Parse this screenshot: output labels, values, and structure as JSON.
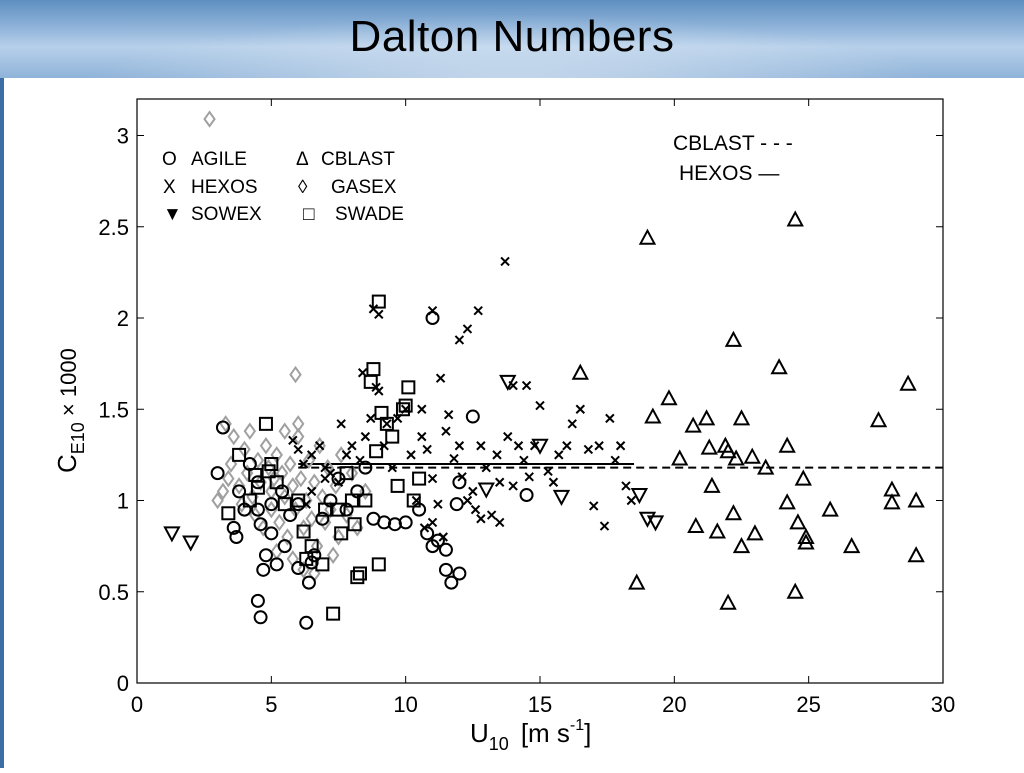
{
  "slide": {
    "title": "Dalton Numbers"
  },
  "colors": {
    "black": "#000000",
    "gasex": "#a0a0a0",
    "title_bar": "#8fb3d9"
  },
  "chart_data": {
    "type": "scatter",
    "xlabel": {
      "base": "U",
      "sub": "10",
      "units": "[m s",
      "sup": "-1",
      "close": "]"
    },
    "ylabel": {
      "base": "C",
      "sub": "E10",
      "suffix": " × 1000"
    },
    "xlim": [
      0,
      30
    ],
    "ylim": [
      0,
      3.2
    ],
    "x_ticks": [
      0,
      5,
      10,
      15,
      20,
      25,
      30
    ],
    "y_ticks": [
      0,
      0.5,
      1,
      1.5,
      2,
      2.5,
      3
    ],
    "legend": {
      "placement": "top-left",
      "rows": [
        [
          {
            "symbol": "O",
            "label": "AGILE"
          },
          {
            "symbol": "Δ",
            "label": "CBLAST"
          }
        ],
        [
          {
            "symbol": "X",
            "label": "HEXOS"
          },
          {
            "symbol": "◊",
            "label": "GASEX"
          }
        ],
        [
          {
            "symbol": "▼",
            "label": "SOWEX"
          },
          {
            "symbol": "□",
            "label": "SWADE"
          }
        ]
      ]
    },
    "fit_legend": {
      "placement": "top-right",
      "items": [
        {
          "label": "CBLAST - - -"
        },
        {
          "label": "HEXOS  —"
        }
      ]
    },
    "fit_lines": [
      {
        "name": "CBLAST",
        "style": "dashed",
        "x": [
          6,
          30
        ],
        "y": [
          1.18,
          1.18
        ]
      },
      {
        "name": "HEXOS",
        "style": "solid",
        "x": [
          6,
          18.5
        ],
        "y": [
          1.2,
          1.2
        ]
      }
    ],
    "series": [
      {
        "name": "AGILE",
        "marker": "circle",
        "points": [
          [
            3.2,
            1.4
          ],
          [
            3.0,
            1.15
          ],
          [
            3.6,
            0.85
          ],
          [
            3.7,
            0.8
          ],
          [
            3.8,
            1.05
          ],
          [
            4.0,
            0.95
          ],
          [
            4.2,
            1.2
          ],
          [
            4.5,
            1.1
          ],
          [
            4.5,
            0.95
          ],
          [
            4.6,
            0.87
          ],
          [
            4.7,
            0.62
          ],
          [
            4.8,
            0.7
          ],
          [
            5.0,
            0.82
          ],
          [
            5.2,
            0.65
          ],
          [
            5.4,
            1.05
          ],
          [
            5.5,
            0.75
          ],
          [
            4.5,
            0.45
          ],
          [
            4.6,
            0.36
          ],
          [
            5.7,
            0.92
          ],
          [
            6.0,
            0.63
          ],
          [
            6.3,
            0.33
          ],
          [
            6.4,
            0.55
          ],
          [
            6.6,
            0.7
          ],
          [
            6.9,
            0.9
          ],
          [
            7.2,
            1.0
          ],
          [
            7.5,
            1.12
          ],
          [
            7.8,
            0.95
          ],
          [
            8.2,
            1.05
          ],
          [
            8.5,
            1.18
          ],
          [
            8.8,
            0.9
          ],
          [
            9.2,
            0.88
          ],
          [
            9.6,
            0.87
          ],
          [
            10.0,
            0.88
          ],
          [
            10.5,
            0.95
          ],
          [
            10.8,
            0.82
          ],
          [
            11.2,
            0.78
          ],
          [
            11.5,
            0.62
          ],
          [
            11.7,
            0.55
          ],
          [
            12.0,
            0.6
          ],
          [
            11.0,
            2.0
          ],
          [
            12.5,
            1.46
          ],
          [
            14.5,
            1.03
          ],
          [
            12.0,
            1.1
          ],
          [
            11.9,
            0.98
          ],
          [
            11.5,
            0.73
          ],
          [
            11.0,
            0.75
          ],
          [
            6.0,
            0.98
          ],
          [
            6.5,
            0.66
          ],
          [
            5.0,
            0.98
          ]
        ]
      },
      {
        "name": "CBLAST",
        "marker": "triangle-up",
        "points": [
          [
            16.5,
            1.7
          ],
          [
            18.6,
            0.55
          ],
          [
            19.0,
            2.44
          ],
          [
            19.2,
            1.46
          ],
          [
            19.8,
            1.56
          ],
          [
            20.2,
            1.23
          ],
          [
            20.7,
            1.41
          ],
          [
            20.8,
            0.86
          ],
          [
            21.2,
            1.45
          ],
          [
            21.3,
            1.29
          ],
          [
            21.4,
            1.08
          ],
          [
            21.6,
            0.83
          ],
          [
            21.9,
            1.3
          ],
          [
            22.0,
            1.27
          ],
          [
            22.2,
            1.88
          ],
          [
            22.0,
            0.44
          ],
          [
            22.2,
            0.93
          ],
          [
            22.3,
            1.23
          ],
          [
            22.5,
            1.45
          ],
          [
            22.5,
            0.75
          ],
          [
            22.9,
            1.24
          ],
          [
            23.0,
            0.82
          ],
          [
            23.4,
            1.18
          ],
          [
            23.9,
            1.73
          ],
          [
            24.2,
            1.3
          ],
          [
            24.2,
            0.99
          ],
          [
            24.5,
            2.54
          ],
          [
            24.5,
            0.5
          ],
          [
            24.6,
            0.88
          ],
          [
            24.8,
            1.12
          ],
          [
            24.9,
            0.8
          ],
          [
            24.9,
            0.77
          ],
          [
            25.8,
            0.95
          ],
          [
            26.6,
            0.75
          ],
          [
            27.6,
            1.44
          ],
          [
            28.1,
            1.06
          ],
          [
            28.1,
            0.99
          ],
          [
            28.7,
            1.64
          ],
          [
            29.0,
            1.0
          ],
          [
            29.0,
            0.7
          ]
        ]
      },
      {
        "name": "HEXOS",
        "marker": "x",
        "points": [
          [
            5.8,
            1.33
          ],
          [
            6.0,
            1.28
          ],
          [
            6.2,
            1.2
          ],
          [
            6.5,
            1.25
          ],
          [
            6.8,
            1.3
          ],
          [
            7.0,
            1.18
          ],
          [
            7.2,
            1.15
          ],
          [
            7.5,
            1.1
          ],
          [
            7.8,
            1.25
          ],
          [
            8.0,
            1.3
          ],
          [
            8.3,
            1.22
          ],
          [
            8.5,
            1.35
          ],
          [
            8.7,
            1.45
          ],
          [
            8.8,
            2.05
          ],
          [
            9.0,
            2.02
          ],
          [
            9.0,
            1.6
          ],
          [
            9.2,
            1.3
          ],
          [
            9.5,
            1.18
          ],
          [
            9.7,
            1.45
          ],
          [
            10.0,
            1.5
          ],
          [
            10.2,
            1.25
          ],
          [
            10.4,
            1.0
          ],
          [
            10.6,
            1.35
          ],
          [
            10.8,
            1.28
          ],
          [
            11.0,
            2.04
          ],
          [
            11.0,
            1.12
          ],
          [
            11.2,
            0.98
          ],
          [
            11.5,
            1.38
          ],
          [
            11.6,
            1.47
          ],
          [
            11.8,
            1.23
          ],
          [
            12.0,
            1.3
          ],
          [
            12.1,
            1.13
          ],
          [
            12.3,
            1.0
          ],
          [
            12.5,
            1.05
          ],
          [
            12.6,
            0.95
          ],
          [
            12.8,
            1.3
          ],
          [
            13.0,
            1.18
          ],
          [
            13.2,
            0.92
          ],
          [
            13.4,
            1.25
          ],
          [
            13.5,
            1.1
          ],
          [
            13.7,
            2.31
          ],
          [
            13.8,
            1.35
          ],
          [
            14.0,
            1.08
          ],
          [
            14.2,
            1.3
          ],
          [
            14.4,
            1.22
          ],
          [
            14.6,
            1.13
          ],
          [
            14.8,
            1.3
          ],
          [
            15.0,
            1.52
          ],
          [
            15.3,
            1.16
          ],
          [
            15.7,
            1.25
          ],
          [
            16.2,
            1.42
          ],
          [
            16.5,
            1.5
          ],
          [
            16.8,
            1.28
          ],
          [
            17.2,
            1.3
          ],
          [
            17.6,
            1.45
          ],
          [
            17.8,
            1.22
          ],
          [
            18.0,
            1.3
          ],
          [
            18.2,
            1.08
          ],
          [
            18.4,
            1.0
          ],
          [
            17.4,
            0.86
          ],
          [
            17.0,
            0.97
          ],
          [
            16.0,
            1.3
          ],
          [
            15.5,
            1.1
          ],
          [
            14.0,
            1.63
          ],
          [
            14.5,
            1.63
          ],
          [
            12.0,
            1.88
          ],
          [
            12.3,
            1.94
          ],
          [
            12.7,
            2.04
          ],
          [
            11.3,
            1.67
          ],
          [
            10.6,
            1.5
          ],
          [
            9.3,
            1.42
          ],
          [
            8.9,
            1.62
          ],
          [
            8.4,
            1.7
          ],
          [
            7.6,
            1.42
          ],
          [
            7.0,
            1.12
          ],
          [
            6.5,
            1.05
          ],
          [
            6.3,
            0.98
          ],
          [
            10.7,
            0.85
          ],
          [
            11.0,
            0.88
          ],
          [
            11.4,
            0.8
          ],
          [
            12.8,
            0.9
          ],
          [
            13.5,
            0.88
          ]
        ]
      },
      {
        "name": "GASEX",
        "marker": "diamond",
        "color": "gasex",
        "points": [
          [
            2.7,
            3.09
          ],
          [
            5.9,
            1.69
          ],
          [
            3.0,
            1.0
          ],
          [
            3.2,
            1.05
          ],
          [
            3.4,
            1.12
          ],
          [
            3.5,
            1.2
          ],
          [
            3.6,
            1.35
          ],
          [
            3.8,
            1.08
          ],
          [
            3.9,
            0.98
          ],
          [
            4.0,
            1.28
          ],
          [
            4.1,
            1.15
          ],
          [
            4.3,
            1.02
          ],
          [
            4.4,
            0.92
          ],
          [
            4.5,
            1.22
          ],
          [
            4.6,
            1.1
          ],
          [
            4.7,
            0.85
          ],
          [
            4.8,
            1.3
          ],
          [
            4.9,
            1.18
          ],
          [
            5.0,
            1.05
          ],
          [
            5.0,
            0.95
          ],
          [
            5.1,
            1.12
          ],
          [
            5.2,
            1.25
          ],
          [
            5.3,
            0.88
          ],
          [
            5.4,
            1.15
          ],
          [
            5.5,
            1.02
          ],
          [
            5.6,
            0.8
          ],
          [
            5.7,
            1.2
          ],
          [
            5.8,
            1.08
          ],
          [
            5.9,
            0.95
          ],
          [
            6.0,
            1.35
          ],
          [
            6.1,
            1.12
          ],
          [
            6.2,
            0.85
          ],
          [
            6.3,
            1.0
          ],
          [
            6.4,
            1.22
          ],
          [
            6.5,
            0.9
          ],
          [
            6.6,
            1.1
          ],
          [
            6.7,
            0.75
          ],
          [
            6.8,
            1.3
          ],
          [
            6.9,
            1.02
          ],
          [
            7.0,
            0.88
          ],
          [
            7.1,
            1.18
          ],
          [
            7.2,
            0.95
          ],
          [
            7.3,
            0.7
          ],
          [
            7.4,
            1.08
          ],
          [
            7.5,
            0.8
          ],
          [
            7.6,
            1.25
          ],
          [
            7.8,
            0.92
          ],
          [
            8.0,
            1.15
          ],
          [
            8.2,
            0.85
          ],
          [
            8.5,
            1.05
          ],
          [
            5.8,
            0.68
          ],
          [
            6.2,
            0.62
          ],
          [
            6.6,
            0.6
          ],
          [
            5.5,
            1.38
          ],
          [
            6.0,
            1.42
          ],
          [
            4.2,
            1.38
          ],
          [
            3.3,
            1.42
          ],
          [
            5.2,
            0.72
          ]
        ]
      },
      {
        "name": "SOWEX",
        "marker": "triangle-down",
        "points": [
          [
            1.3,
            0.82
          ],
          [
            2.0,
            0.77
          ],
          [
            13.0,
            1.06
          ],
          [
            13.8,
            1.65
          ],
          [
            15.0,
            1.3
          ],
          [
            15.8,
            1.02
          ],
          [
            18.7,
            1.03
          ],
          [
            19.0,
            0.9
          ],
          [
            19.3,
            0.88
          ]
        ]
      },
      {
        "name": "SWADE",
        "marker": "square",
        "points": [
          [
            3.4,
            0.93
          ],
          [
            3.8,
            1.25
          ],
          [
            4.2,
            1.0
          ],
          [
            4.4,
            1.14
          ],
          [
            4.5,
            1.07
          ],
          [
            4.8,
            1.42
          ],
          [
            4.9,
            1.16
          ],
          [
            5.0,
            1.2
          ],
          [
            5.2,
            1.1
          ],
          [
            5.5,
            0.98
          ],
          [
            6.0,
            1.0
          ],
          [
            6.2,
            0.83
          ],
          [
            6.3,
            0.68
          ],
          [
            6.5,
            0.75
          ],
          [
            6.9,
            0.65
          ],
          [
            7.0,
            0.95
          ],
          [
            7.3,
            0.38
          ],
          [
            7.5,
            0.95
          ],
          [
            7.6,
            0.82
          ],
          [
            7.8,
            1.15
          ],
          [
            8.0,
            1.0
          ],
          [
            8.1,
            0.87
          ],
          [
            8.2,
            0.58
          ],
          [
            8.3,
            0.6
          ],
          [
            8.5,
            1.0
          ],
          [
            8.7,
            1.65
          ],
          [
            8.8,
            1.72
          ],
          [
            8.9,
            1.27
          ],
          [
            9.0,
            2.09
          ],
          [
            9.0,
            0.65
          ],
          [
            9.1,
            1.48
          ],
          [
            9.3,
            1.42
          ],
          [
            9.5,
            1.35
          ],
          [
            9.7,
            1.08
          ],
          [
            9.9,
            1.5
          ],
          [
            10.0,
            1.52
          ],
          [
            10.1,
            1.62
          ],
          [
            10.3,
            1.0
          ],
          [
            10.5,
            1.12
          ]
        ]
      }
    ]
  }
}
